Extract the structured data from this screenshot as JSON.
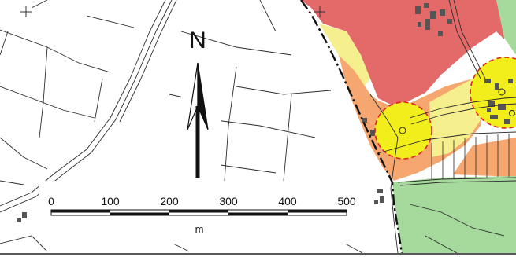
{
  "map": {
    "north_label": "N",
    "scale_ticks": [
      "0",
      "100",
      "200",
      "300",
      "400",
      "500"
    ],
    "scale_unit": "m",
    "colors": {
      "zone_red": "#e46a6a",
      "zone_orange": "#f6a76f",
      "zone_yellow_light": "#f6ef8e",
      "zone_yellow": "#f2ee1c",
      "zone_green": "#a6d99c",
      "line": "#2b2b2b",
      "background": "#ffffff"
    },
    "symbols": [
      "north-arrow-icon",
      "cross-marker-icon",
      "boundary-dashdot-line",
      "buffer-circle-dashed"
    ]
  }
}
